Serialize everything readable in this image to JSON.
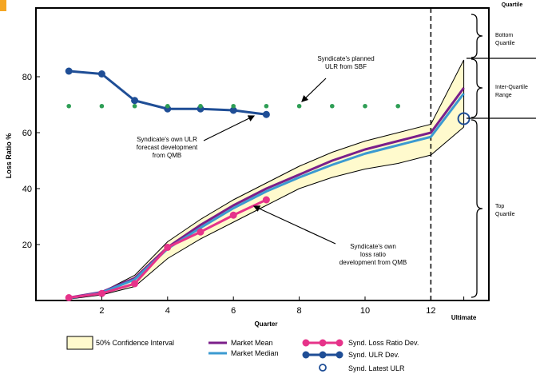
{
  "chart_data": {
    "type": "line",
    "xlabel": "Quarter",
    "ylabel": "Loss Ratio %",
    "xlim": [
      0,
      13
    ],
    "ylim": [
      0,
      100
    ],
    "x_ticks": [
      {
        "x": 2,
        "label": "2"
      },
      {
        "x": 4,
        "label": "4"
      },
      {
        "x": 6,
        "label": "6"
      },
      {
        "x": 8,
        "label": "8"
      },
      {
        "x": 10,
        "label": "10"
      },
      {
        "x": 12,
        "label": "12"
      },
      {
        "x": 13,
        "label": "Ultimate"
      }
    ],
    "y_ticks": [
      20,
      40,
      60,
      80
    ],
    "grid": false,
    "confidence_interval": {
      "name": "50% Confidence Interval",
      "x": [
        1,
        2,
        3,
        4,
        5,
        6,
        7,
        8,
        9,
        10,
        11,
        12,
        13
      ],
      "upper": [
        1,
        3,
        9,
        21,
        29,
        36,
        42,
        48,
        53,
        57,
        60,
        63,
        86
      ],
      "lower": [
        0.5,
        2,
        5,
        15,
        22,
        28,
        34,
        40,
        44,
        47,
        49,
        52,
        62
      ]
    },
    "series": [
      {
        "name": "Market Mean",
        "color": "#7b1f8a",
        "x": [
          1,
          2,
          3,
          4,
          5,
          6,
          7,
          8,
          9,
          10,
          11,
          12,
          13
        ],
        "values": [
          1,
          3,
          8,
          19,
          27,
          34,
          40,
          45,
          50,
          54,
          57,
          60,
          76
        ]
      },
      {
        "name": "Market Median",
        "color": "#3b9ad1",
        "x": [
          1,
          2,
          3,
          4,
          5,
          6,
          7,
          8,
          9,
          10,
          11,
          12,
          13
        ],
        "values": [
          0.8,
          2.8,
          7.5,
          18.5,
          26,
          33,
          39,
          44,
          48.5,
          52.5,
          55.5,
          58.5,
          74
        ]
      },
      {
        "name": "Synd. Loss Ratio Dev.",
        "color": "#e6338a",
        "x": [
          1,
          2,
          3,
          4,
          5,
          6,
          7
        ],
        "values": [
          1,
          2.5,
          6,
          19,
          24.5,
          30.5,
          36
        ]
      },
      {
        "name": "Synd. ULR Dev.",
        "color": "#1f4e96",
        "x": [
          1,
          2,
          3,
          4,
          5,
          6,
          7
        ],
        "values": [
          82,
          81,
          71.5,
          68.5,
          68.5,
          68,
          66.5
        ]
      },
      {
        "name": "Syndicate's planned ULR from SBF",
        "color": "#2e9e55",
        "x": [
          1,
          2,
          3,
          4,
          5,
          6,
          7,
          8,
          9,
          10,
          11
        ],
        "values": [
          69.5,
          69.5,
          69.5,
          69.5,
          69.5,
          69.5,
          69.5,
          69.5,
          69.5,
          69.5,
          69.5
        ]
      }
    ],
    "latest_ulr": {
      "name": "Synd. Latest ULR",
      "x": 13,
      "value": 65,
      "color": "#1f4e96"
    },
    "vertical_marker_x": 12,
    "annotations": [
      {
        "text": [
          "Syndicate's planned",
          "ULR from SBF"
        ]
      },
      {
        "text": [
          "Syndicate's own ULR",
          "forecast development",
          "from QMB"
        ]
      },
      {
        "text": [
          "Syndicate's own",
          "loss ratio",
          "development from QMB"
        ]
      }
    ],
    "quartile_panel": {
      "header": "Quartile",
      "labels": [
        [
          "Bottom",
          "Quartile"
        ],
        [
          "Inter-Quartile",
          "Range"
        ],
        [
          "Top",
          "Quartile"
        ]
      ]
    },
    "legend": [
      {
        "key": "ci",
        "label": "50% Confidence Interval"
      },
      {
        "key": "mean",
        "label": "Market Mean"
      },
      {
        "key": "median",
        "label": "Market Median"
      },
      {
        "key": "lrdev",
        "label": "Synd. Loss Ratio Dev."
      },
      {
        "key": "ulrdev",
        "label": "Synd. ULR Dev."
      },
      {
        "key": "latest",
        "label": "Synd. Latest ULR"
      }
    ],
    "ci_fill": "#fffacd",
    "accent": "#f5a623"
  }
}
